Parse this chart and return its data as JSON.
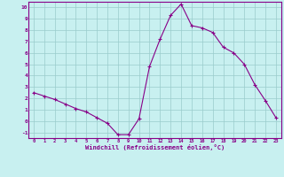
{
  "x": [
    0,
    1,
    2,
    3,
    4,
    5,
    6,
    7,
    8,
    9,
    10,
    11,
    12,
    13,
    14,
    15,
    16,
    17,
    18,
    19,
    20,
    21,
    22,
    23
  ],
  "y": [
    2.5,
    2.2,
    1.9,
    1.5,
    1.1,
    0.8,
    0.3,
    -0.2,
    -1.2,
    -1.2,
    0.2,
    4.8,
    7.2,
    9.3,
    10.3,
    8.4,
    8.2,
    7.8,
    6.5,
    6.0,
    5.0,
    3.2,
    1.8,
    0.3
  ],
  "line_color": "#880088",
  "marker_color": "#880088",
  "bg_color": "#c8f0f0",
  "grid_color": "#99cccc",
  "xlabel": "Windchill (Refroidissement éolien,°C)",
  "xlim": [
    -0.5,
    23.5
  ],
  "ylim": [
    -1.5,
    10.5
  ],
  "xticks": [
    0,
    1,
    2,
    3,
    4,
    5,
    6,
    7,
    8,
    9,
    10,
    11,
    12,
    13,
    14,
    15,
    16,
    17,
    18,
    19,
    20,
    21,
    22,
    23
  ],
  "yticks": [
    -1,
    0,
    1,
    2,
    3,
    4,
    5,
    6,
    7,
    8,
    9,
    10
  ],
  "tick_color": "#880088",
  "label_color": "#880088",
  "spine_color": "#880088"
}
